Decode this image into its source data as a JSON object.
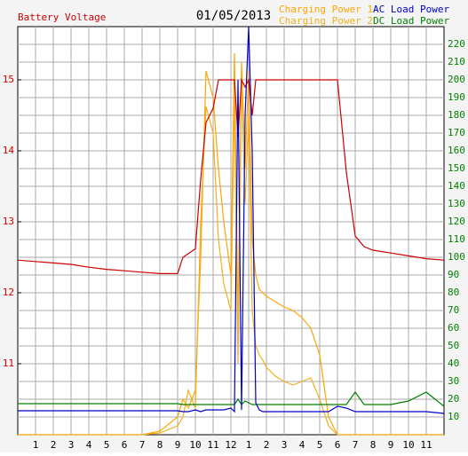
{
  "chart_data": {
    "type": "line",
    "title": "01/05/2013",
    "x": [
      0,
      1,
      2,
      3,
      4,
      5,
      6,
      7,
      8,
      9,
      9.3,
      9.6,
      10,
      10.3,
      10.6,
      11,
      11.3,
      11.6,
      12,
      12.2,
      12.4,
      12.6,
      12.8,
      13,
      13.2,
      13.4,
      13.6,
      13.8,
      14,
      14.5,
      15,
      15.5,
      16,
      16.5,
      17,
      17.5,
      18,
      18.5,
      19,
      19.5,
      20,
      21,
      22,
      23,
      24
    ],
    "xlim": [
      0,
      24
    ],
    "xticks": [
      1,
      2,
      3,
      4,
      5,
      6,
      7,
      8,
      9,
      10,
      11,
      12,
      {
        "value": 13,
        "label": "1"
      },
      {
        "value": 14,
        "label": "2"
      },
      {
        "value": 15,
        "label": "3"
      },
      {
        "value": 16,
        "label": "4"
      },
      {
        "value": 17,
        "label": "5"
      },
      {
        "value": 18,
        "label": "6"
      },
      {
        "value": 19,
        "label": "7"
      },
      {
        "value": 20,
        "label": "8"
      },
      {
        "value": 21,
        "label": "9"
      },
      {
        "value": 22,
        "label": "10"
      },
      {
        "value": 23,
        "label": "11"
      }
    ],
    "ylim": [
      10,
      15.75
    ],
    "yticks": [
      11,
      12,
      13,
      14,
      15
    ],
    "y2lim": [
      0,
      230
    ],
    "y2ticks": [
      10,
      20,
      30,
      40,
      50,
      60,
      70,
      80,
      90,
      100,
      110,
      120,
      130,
      140,
      150,
      160,
      170,
      180,
      190,
      200,
      210,
      220
    ],
    "grid": true,
    "series": [
      {
        "name": "Battery Voltage",
        "color": "#cc0000",
        "values": [
          12.46,
          12.44,
          12.42,
          12.4,
          12.36,
          12.33,
          12.31,
          12.29,
          12.27,
          12.27,
          12.5,
          12.55,
          12.62,
          13.6,
          14.4,
          14.6,
          15.0,
          15.0,
          15.0,
          15.0,
          14.2,
          15.0,
          14.9,
          15.0,
          14.5,
          15.0,
          15.0,
          15.0,
          15.0,
          15.0,
          15.0,
          15.0,
          15.0,
          15.0,
          15.0,
          15.0,
          15.0,
          13.7,
          12.8,
          12.65,
          12.6,
          12.56,
          12.52,
          12.48,
          12.46
        ]
      },
      {
        "name": "Charging Power 1",
        "color": "#ffa500",
        "axis": "y2",
        "values": [
          0,
          0,
          0,
          0,
          0,
          0,
          0,
          0,
          2,
          10,
          20,
          15,
          25,
          100,
          205,
          190,
          150,
          120,
          90,
          215,
          60,
          210,
          150,
          205,
          110,
          90,
          82,
          80,
          78,
          75,
          72,
          70,
          66,
          60,
          45,
          10,
          0,
          0,
          0,
          0,
          0,
          0,
          0,
          0,
          0
        ]
      },
      {
        "name": "Charging Power 2",
        "color": "#f0b020",
        "axis": "y2",
        "values": [
          0,
          0,
          0,
          0,
          0,
          0,
          0,
          0,
          1,
          5,
          10,
          25,
          15,
          120,
          185,
          170,
          110,
          85,
          70,
          190,
          40,
          200,
          130,
          180,
          70,
          50,
          45,
          42,
          38,
          33,
          30,
          28,
          30,
          32,
          20,
          5,
          0,
          0,
          0,
          0,
          0,
          0,
          0,
          0,
          0
        ]
      },
      {
        "name": "AC Load Power",
        "color": "#0000cc",
        "axis": "y2",
        "values": [
          13.5,
          13.5,
          13.5,
          13.5,
          13.5,
          13.5,
          13.5,
          13.5,
          13.5,
          13.5,
          13,
          13,
          14,
          13,
          14,
          14,
          14,
          14,
          15,
          13,
          200,
          14,
          180,
          230,
          160,
          18,
          14,
          13,
          13,
          13,
          13,
          13,
          13,
          13,
          13,
          13,
          16,
          15,
          13,
          13,
          13,
          13,
          13,
          13,
          12
        ]
      },
      {
        "name": "DC Load Power",
        "color": "#008000",
        "axis": "y2",
        "values": [
          17.5,
          17.5,
          17.5,
          17.5,
          17.5,
          17.5,
          17.5,
          17.5,
          17.5,
          17.5,
          17,
          17,
          17,
          17,
          17,
          17,
          17,
          17,
          17,
          17,
          20,
          17,
          19,
          18,
          17,
          17,
          17,
          17,
          17,
          17,
          17,
          17,
          17,
          17,
          17,
          17,
          17,
          17,
          24,
          17,
          17,
          17,
          19,
          24,
          16
        ]
      }
    ]
  }
}
